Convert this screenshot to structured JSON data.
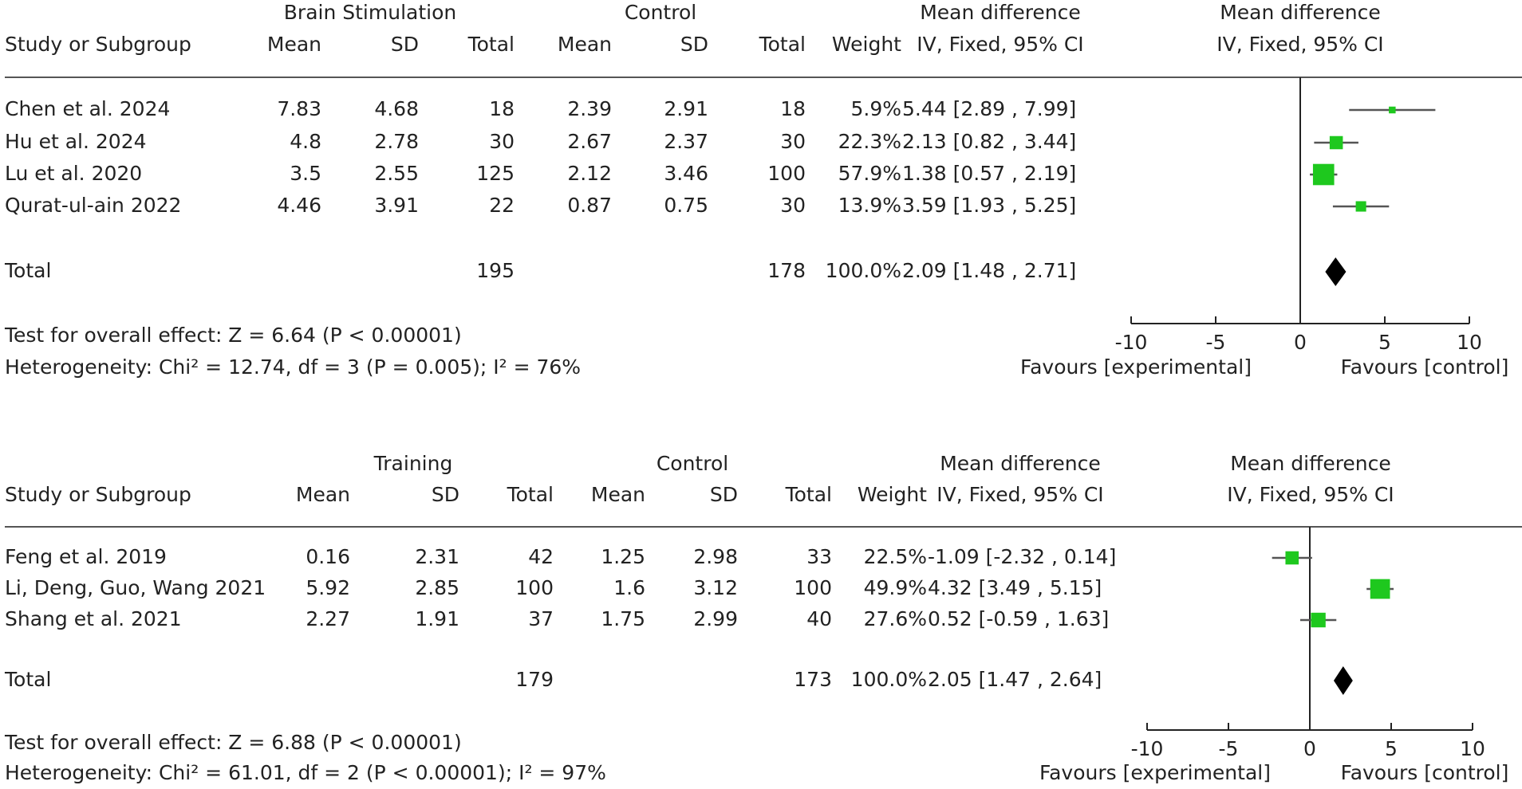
{
  "chart_data": [
    {
      "type": "forest",
      "group_labels": [
        "Brain Stimulation",
        "Control"
      ],
      "effect_header": "Mean difference",
      "method_header": "IV, Fixed, 95% CI",
      "columns": [
        "Study or Subgroup",
        "Mean",
        "SD",
        "Total",
        "Mean",
        "SD",
        "Total",
        "Weight",
        "IV, Fixed, 95% CI"
      ],
      "studies": [
        {
          "name": "Chen et al. 2024",
          "exp_mean": 7.83,
          "exp_sd": 4.68,
          "exp_total": 18,
          "ctl_mean": 2.39,
          "ctl_sd": 2.91,
          "ctl_total": 18,
          "weight": 5.9,
          "weight_label": "5.9%",
          "md": 5.44,
          "ci": [
            2.89,
            7.99
          ],
          "md_label": "5.44 [2.89 , 7.99]"
        },
        {
          "name": "Hu et al. 2024",
          "exp_mean": 4.8,
          "exp_sd": 2.78,
          "exp_total": 30,
          "ctl_mean": 2.67,
          "ctl_sd": 2.37,
          "ctl_total": 30,
          "weight": 22.3,
          "weight_label": "22.3%",
          "md": 2.13,
          "ci": [
            0.82,
            3.44
          ],
          "md_label": "2.13 [0.82 , 3.44]"
        },
        {
          "name": "Lu et al. 2020",
          "exp_mean": 3.5,
          "exp_sd": 2.55,
          "exp_total": 125,
          "ctl_mean": 2.12,
          "ctl_sd": 3.46,
          "ctl_total": 100,
          "weight": 57.9,
          "weight_label": "57.9%",
          "md": 1.38,
          "ci": [
            0.57,
            2.19
          ],
          "md_label": "1.38 [0.57 , 2.19]"
        },
        {
          "name": "Qurat-ul-ain 2022",
          "exp_mean": 4.46,
          "exp_sd": 3.91,
          "exp_total": 22,
          "ctl_mean": 0.87,
          "ctl_sd": 0.75,
          "ctl_total": 30,
          "weight": 13.9,
          "weight_label": "13.9%",
          "md": 3.59,
          "ci": [
            1.93,
            5.25
          ],
          "md_label": "3.59 [1.93 , 5.25]"
        }
      ],
      "total": {
        "name": "Total",
        "exp_total": 195,
        "ctl_total": 178,
        "weight": 100,
        "weight_label": "100.0%",
        "md": 2.09,
        "ci": [
          1.48,
          2.71
        ],
        "md_label": "2.09 [1.48 , 2.71]"
      },
      "overall_effect": "Test for overall effect: Z = 6.64 (P < 0.00001)",
      "heterogeneity": "Heterogeneity: Chi² = 12.74, df = 3 (P = 0.005); I² = 76%",
      "xlim": [
        -10,
        10
      ],
      "xticks": [
        -10,
        -5,
        0,
        5,
        10
      ],
      "xlabels": [
        "Favours [experimental]",
        "Favours [control]"
      ],
      "marker_color": "#1ec81e",
      "ci_color": "#555555"
    },
    {
      "type": "forest",
      "group_labels": [
        "Training",
        "Control"
      ],
      "effect_header": "Mean difference",
      "method_header": "IV, Fixed, 95% CI",
      "columns": [
        "Study or Subgroup",
        "Mean",
        "SD",
        "Total",
        "Mean",
        "SD",
        "Total",
        "Weight",
        "IV, Fixed, 95% CI"
      ],
      "studies": [
        {
          "name": "Feng et al. 2019",
          "exp_mean": 0.16,
          "exp_sd": 2.31,
          "exp_total": 42,
          "ctl_mean": 1.25,
          "ctl_sd": 2.98,
          "ctl_total": 33,
          "weight": 22.5,
          "weight_label": "22.5%",
          "md": -1.09,
          "ci": [
            -2.32,
            0.14
          ],
          "md_label": "-1.09 [-2.32 , 0.14]"
        },
        {
          "name": "Li, Deng, Guo, Wang 2021",
          "exp_mean": 5.92,
          "exp_sd": 2.85,
          "exp_total": 100,
          "ctl_mean": 1.6,
          "ctl_sd": 3.12,
          "ctl_total": 100,
          "weight": 49.9,
          "weight_label": "49.9%",
          "md": 4.32,
          "ci": [
            3.49,
            5.15
          ],
          "md_label": "4.32 [3.49 , 5.15]"
        },
        {
          "name": "Shang et al. 2021",
          "exp_mean": 2.27,
          "exp_sd": 1.91,
          "exp_total": 37,
          "ctl_mean": 1.75,
          "ctl_sd": 2.99,
          "ctl_total": 40,
          "weight": 27.6,
          "weight_label": "27.6%",
          "md": 0.52,
          "ci": [
            -0.59,
            1.63
          ],
          "md_label": "0.52 [-0.59 , 1.63]"
        }
      ],
      "total": {
        "name": "Total",
        "exp_total": 179,
        "ctl_total": 173,
        "weight": 100,
        "weight_label": "100.0%",
        "md": 2.05,
        "ci": [
          1.47,
          2.64
        ],
        "md_label": "2.05 [1.47 , 2.64]"
      },
      "overall_effect": "Test for overall effect: Z = 6.88 (P < 0.00001)",
      "heterogeneity": "Heterogeneity: Chi² = 61.01, df = 2 (P < 0.00001); I² = 97%",
      "xlim": [
        -10,
        10
      ],
      "xticks": [
        -10,
        -5,
        0,
        5,
        10
      ],
      "xlabels": [
        "Favours [experimental]",
        "Favours [control]"
      ],
      "marker_color": "#1ec81e",
      "ci_color": "#555555"
    }
  ]
}
